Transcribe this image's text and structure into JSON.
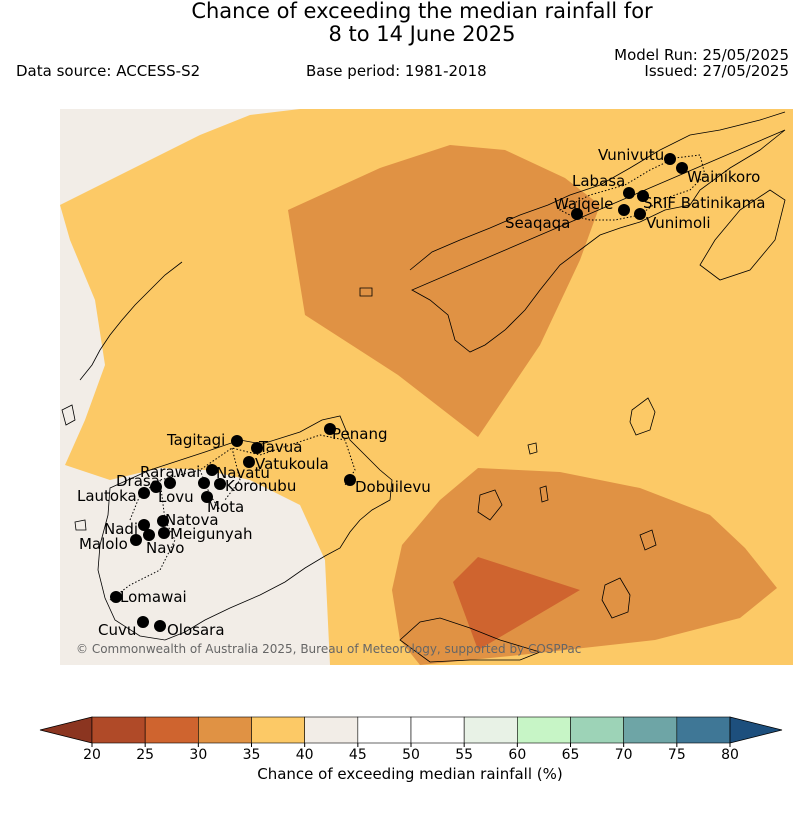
{
  "title_line1": "Chance of exceeding the median rainfall for",
  "title_line2": "8 to 14 June 2025",
  "data_source": "Data source: ACCESS-S2",
  "base_period": "Base period: 1981-2018",
  "model_run": "Model Run: 25/05/2025",
  "issued": "Issued: 27/05/2025",
  "copyright": "© Commonwealth of Australia 2025, Bureau of Meteorology, supported by COSPPac",
  "colorbar": {
    "title": "Chance of exceeding median rainfall (%)",
    "ticks": [
      "20",
      "25",
      "30",
      "35",
      "40",
      "45",
      "50",
      "55",
      "60",
      "65",
      "70",
      "75",
      "80"
    ],
    "colors": [
      "#b04a28",
      "#cf642f",
      "#e09244",
      "#fcc966",
      "#f2ede7",
      "#ffffff",
      "#ffffff",
      "#e8f2e6",
      "#c7f5c6",
      "#9dd3b7",
      "#6ea5a6",
      "#3f7796"
    ],
    "under_color": "#8b3520",
    "over_color": "#1d4f7d"
  },
  "colors": {
    "cat_40_45": "#f2ede7",
    "cat_35_40": "#fcc966",
    "cat_30_35": "#e09244",
    "cat_25_30": "#cf642f"
  },
  "stations": [
    "Vunivutu",
    "Wainikoro",
    "Labasa",
    "SRIF Batinikama",
    "Waiqele",
    "Seaqaqa",
    "Vunimoli",
    "Penang",
    "Tagitagi",
    "Tavua",
    "Vatukoula",
    "Rarawai",
    "Navatu",
    "Drasa",
    "Koronubu",
    "Lautoka",
    "Lovu",
    "Mota",
    "Natova",
    "Nadi",
    "Meigunyah",
    "Malolo",
    "Navo",
    "Lomawai",
    "Cuvu",
    "Olosara",
    "Dobuilevu"
  ]
}
